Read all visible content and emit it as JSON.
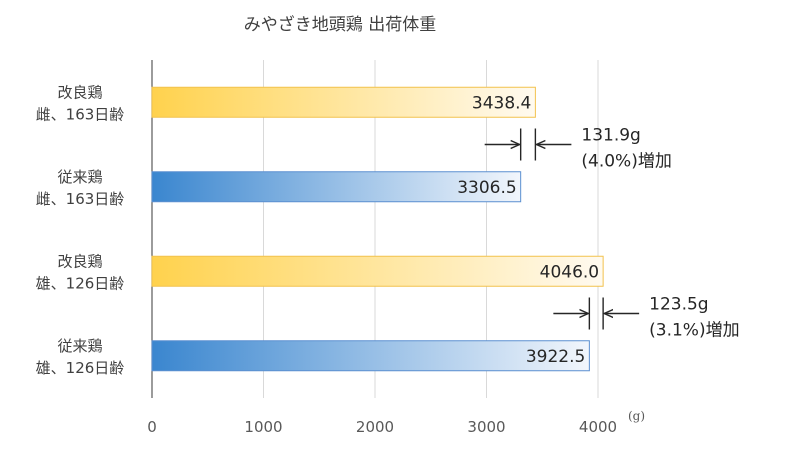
{
  "chart_data": {
    "type": "bar",
    "orientation": "horizontal",
    "title": "みやざき地頭鶏 出荷体重",
    "unit": "(g)",
    "xlim": [
      0,
      4000
    ],
    "xticks": [
      "0",
      "1000",
      "2000",
      "3000",
      "4000"
    ],
    "grid": true,
    "categories": [
      [
        "改良鶏",
        "雌、163日齢"
      ],
      [
        "従来鶏",
        "雌、163日齢"
      ],
      [
        "改良鶏",
        "雄、126日齢"
      ],
      [
        "従来鶏",
        "雄、126日齢"
      ]
    ],
    "values": [
      3438.4,
      3306.5,
      4046.0,
      3922.5
    ],
    "value_labels": [
      "3438.4",
      "3306.5",
      "4046.0",
      "3922.5"
    ],
    "bar_styles": [
      "improved",
      "conventional",
      "improved",
      "conventional"
    ],
    "annotations": [
      {
        "from": 3306.5,
        "to": 3438.4,
        "line1": "131.9g",
        "line2": "(4.0%)増加"
      },
      {
        "from": 3922.5,
        "to": 4046.0,
        "line1": "123.5g",
        "line2": "(3.1%)増加"
      }
    ]
  },
  "colors": {
    "improved_start": "#ffd24d",
    "improved_end": "#fffaf0",
    "improved_border": "#f2c24d",
    "conventional_start": "#3a86cf",
    "conventional_end": "#f2f6fc",
    "conventional_border": "#5b8fd0",
    "grid": "#d9d9d9",
    "axis": "#595959"
  }
}
